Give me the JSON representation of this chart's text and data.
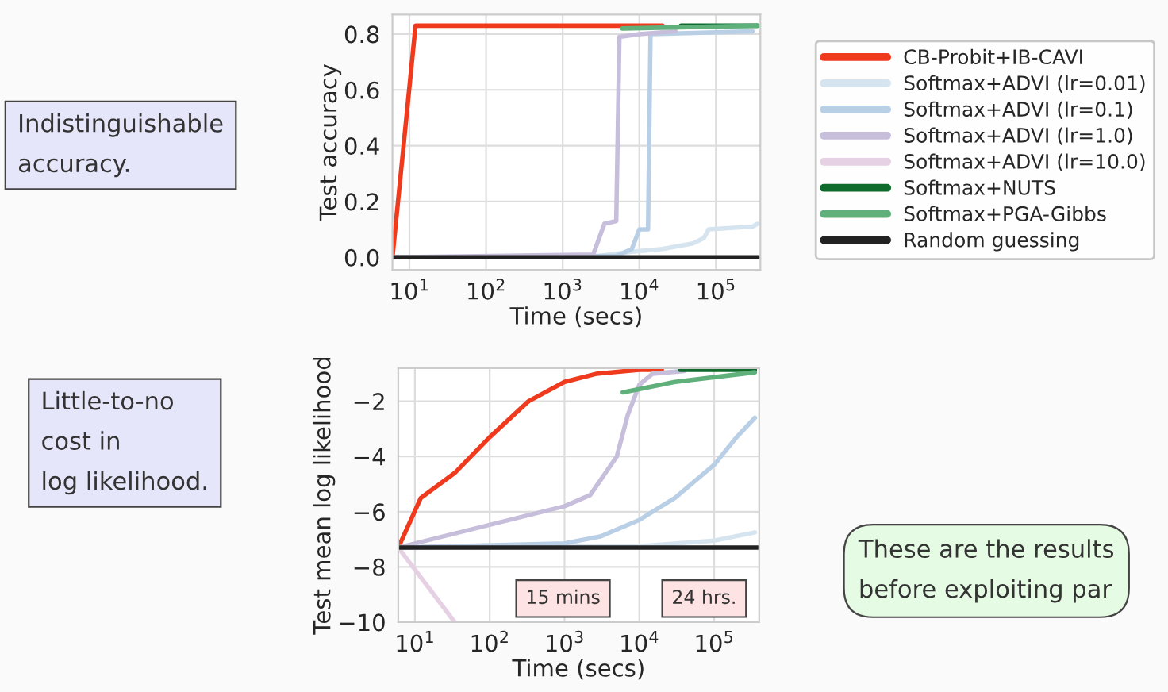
{
  "chart_data": [
    {
      "type": "line",
      "xlabel": "Time (secs)",
      "ylabel": "Test accuracy",
      "log": "x",
      "grid": true,
      "legend": "right",
      "xlim": [
        6,
        380000
      ],
      "ylim": [
        -0.045,
        0.87
      ],
      "xticks": [
        {
          "value": 10,
          "label": "10$^{1}$"
        },
        {
          "value": 100,
          "label": "10$^{2}$"
        },
        {
          "value": 1000,
          "label": "10$^{3}$"
        },
        {
          "value": 10000,
          "label": "10$^{4}$"
        },
        {
          "value": 100000,
          "label": "10$^{5}$"
        }
      ],
      "yticks": [
        {
          "value": 0,
          "label": "0.0"
        },
        0.2,
        0.4,
        0.6,
        0.8
      ],
      "series": [
        {
          "name": "CB-Probit+IB-CAVI",
          "color": "#f03a1e",
          "x": [
            6,
            12,
            20000
          ],
          "values": [
            0,
            0.83,
            0.83
          ]
        },
        {
          "name": "Softmax+ADVI (lr=0.01)",
          "color": "#d6e4f0",
          "x": [
            3000,
            8000,
            20000,
            50000,
            70000,
            80000,
            300000,
            350000
          ],
          "values": [
            0.005,
            0.02,
            0.03,
            0.05,
            0.07,
            0.1,
            0.11,
            0.12
          ]
        },
        {
          "name": "Softmax+ADVI (lr=0.1)",
          "color": "#b9cfe6",
          "x": [
            6,
            5000,
            8000,
            10000,
            13000,
            14000,
            300000
          ],
          "values": [
            0,
            0.005,
            0.03,
            0.1,
            0.1,
            0.8,
            0.81
          ]
        },
        {
          "name": "Softmax+ADVI (lr=1.0)",
          "color": "#c7bedc",
          "x": [
            6,
            2500,
            3500,
            5000,
            5500,
            10000,
            30000
          ],
          "values": [
            0,
            0.01,
            0.12,
            0.13,
            0.79,
            0.8,
            0.81
          ]
        },
        {
          "name": "Softmax+ADVI (lr=10.0)",
          "color": "#e6d0e4"
        },
        {
          "name": "Softmax+NUTS",
          "color": "#0e6b2c",
          "x": [
            35000,
            350000
          ],
          "values": [
            0.83,
            0.83
          ]
        },
        {
          "name": "Softmax+PGA-Gibbs",
          "color": "#5fb07a",
          "x": [
            6000,
            350000
          ],
          "values": [
            0.82,
            0.83
          ]
        },
        {
          "name": "Random guessing",
          "color": "#222222",
          "x": [
            6,
            380000
          ],
          "values": [
            0,
            0
          ]
        }
      ],
      "annotations": [
        "Indistinguishable\naccuracy."
      ]
    },
    {
      "type": "line",
      "xlabel": "Time (secs)",
      "ylabel": "Test mean log likelihood",
      "log": "x",
      "grid": true,
      "xlim": [
        6,
        400000
      ],
      "ylim": [
        -10,
        -0.8
      ],
      "xticks": [
        {
          "value": 10,
          "label": "10$^{1}$"
        },
        {
          "value": 100,
          "label": "10$^{2}$"
        },
        {
          "value": 1000,
          "label": "10$^{3}$"
        },
        {
          "value": 10000,
          "label": "10$^{4}$"
        },
        {
          "value": 100000,
          "label": "10$^{5}$"
        }
      ],
      "yticks": [
        {
          "value": -10,
          "label": "−10"
        },
        {
          "value": -8,
          "label": "−8"
        },
        {
          "value": -6,
          "label": "−6"
        },
        {
          "value": -4,
          "label": "−4"
        },
        {
          "value": -2,
          "label": "−2"
        }
      ],
      "series": [
        {
          "color": "#f03a1e",
          "x": [
            6,
            12,
            34,
            100,
            330,
            1000,
            2700,
            10000,
            20000
          ],
          "values": [
            -7.3,
            -5.5,
            -4.6,
            -3.3,
            -2.0,
            -1.3,
            -1.0,
            -0.86,
            -0.86
          ]
        },
        {
          "color": "#d6e4f0",
          "x": [
            6,
            10000,
            100000,
            350000
          ],
          "values": [
            -7.3,
            -7.25,
            -7.05,
            -6.75
          ]
        },
        {
          "color": "#b9cfe6",
          "x": [
            6,
            1000,
            3000,
            10000,
            30000,
            100000,
            200000,
            350000
          ],
          "values": [
            -7.3,
            -7.15,
            -6.9,
            -6.3,
            -5.5,
            -4.3,
            -3.3,
            -2.6
          ]
        },
        {
          "color": "#c7bedc",
          "x": [
            6,
            1000,
            2200,
            5000,
            7000,
            10000,
            15000,
            40000
          ],
          "values": [
            -7.3,
            -5.8,
            -5.4,
            -4.0,
            -2.5,
            -1.4,
            -1.0,
            -0.9
          ]
        },
        {
          "color": "#e6d0e4",
          "x": [
            6,
            34
          ],
          "values": [
            -7.3,
            -10
          ]
        },
        {
          "color": "#0e6b2c",
          "x": [
            35000,
            350000
          ],
          "values": [
            -0.86,
            -0.86
          ]
        },
        {
          "color": "#5fb07a",
          "x": [
            6000,
            30000,
            350000
          ],
          "values": [
            -1.68,
            -1.3,
            -0.95
          ]
        },
        {
          "color": "#222222",
          "x": [
            6,
            400000
          ],
          "values": [
            -7.3,
            -7.3
          ]
        }
      ],
      "annotations": [
        "Little-to-no\ncost in\nlog likelihood.",
        "15 mins",
        "24 hrs.",
        "These are the results\nbefore exploiting par"
      ]
    }
  ]
}
